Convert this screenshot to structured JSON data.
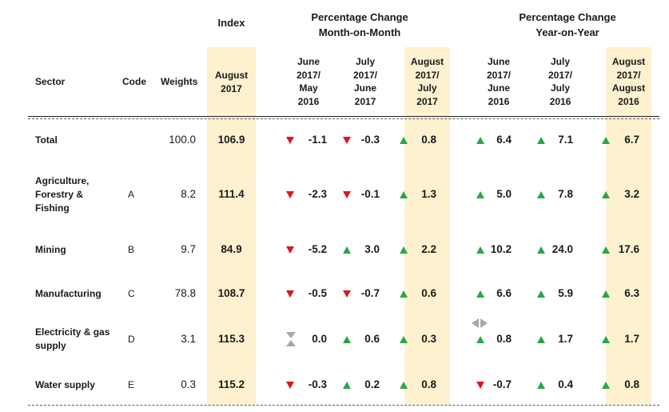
{
  "header": {
    "index_title": "Index",
    "mom_title": "Percentage Change Month-on-Month",
    "yoy_title": "Percentage Change Year-on-Year",
    "sector": "Sector",
    "code": "Code",
    "weights": "Weights",
    "periods": [
      "August 2017",
      "June 2017/ May 2016",
      "July 2017/ June 2017",
      "August 2017/ July 2017",
      "June 2017/ June 2016",
      "July 2017/ July 2016",
      "August 2017/ August 2016"
    ]
  },
  "rows": [
    {
      "sector": "Total",
      "code": "",
      "weight": "100.0",
      "index": "106.9",
      "values": [
        "-1.1",
        "-0.3",
        "0.8",
        "6.4",
        "7.1",
        "6.7"
      ],
      "trends": [
        "down",
        "down",
        "up",
        "up",
        "up",
        "up"
      ]
    },
    {
      "sector": "Agriculture, Forestry & Fishing",
      "code": "A",
      "weight": "8.2",
      "index": "111.4",
      "values": [
        "-2.3",
        "-0.1",
        "1.3",
        "5.0",
        "7.8",
        "3.2"
      ],
      "trends": [
        "down",
        "down",
        "up",
        "up",
        "up",
        "up"
      ]
    },
    {
      "sector": "Mining",
      "code": "B",
      "weight": "9.7",
      "index": "84.9",
      "values": [
        "-5.2",
        "3.0",
        "2.2",
        "10.2",
        "24.0",
        "17.6"
      ],
      "trends": [
        "down",
        "up",
        "up",
        "up",
        "up",
        "up"
      ]
    },
    {
      "sector": "Manufacturing",
      "code": "C",
      "weight": "78.8",
      "index": "108.7",
      "values": [
        "-0.5",
        "-0.7",
        "0.6",
        "6.6",
        "5.9",
        "6.3"
      ],
      "trends": [
        "down",
        "down",
        "up",
        "up",
        "up",
        "up"
      ]
    },
    {
      "sector": "Electricity & gas supply",
      "code": "D",
      "weight": "3.1",
      "index": "115.3",
      "values": [
        "0.0",
        "0.6",
        "0.3",
        "0.8",
        "1.7",
        "1.7"
      ],
      "trends": [
        "flat",
        "up",
        "up",
        "up",
        "up",
        "up"
      ]
    },
    {
      "sector": "Water supply",
      "code": "E",
      "weight": "0.3",
      "index": "115.2",
      "values": [
        "-0.3",
        "0.2",
        "0.8",
        "-0.7",
        "0.4",
        "0.8"
      ],
      "trends": [
        "down",
        "up",
        "up",
        "down",
        "up",
        "up"
      ]
    }
  ],
  "colors": {
    "up": "#28a745",
    "down": "#e0141e",
    "flat": "#a9a9a9",
    "highlight": "#fdf1cf"
  }
}
